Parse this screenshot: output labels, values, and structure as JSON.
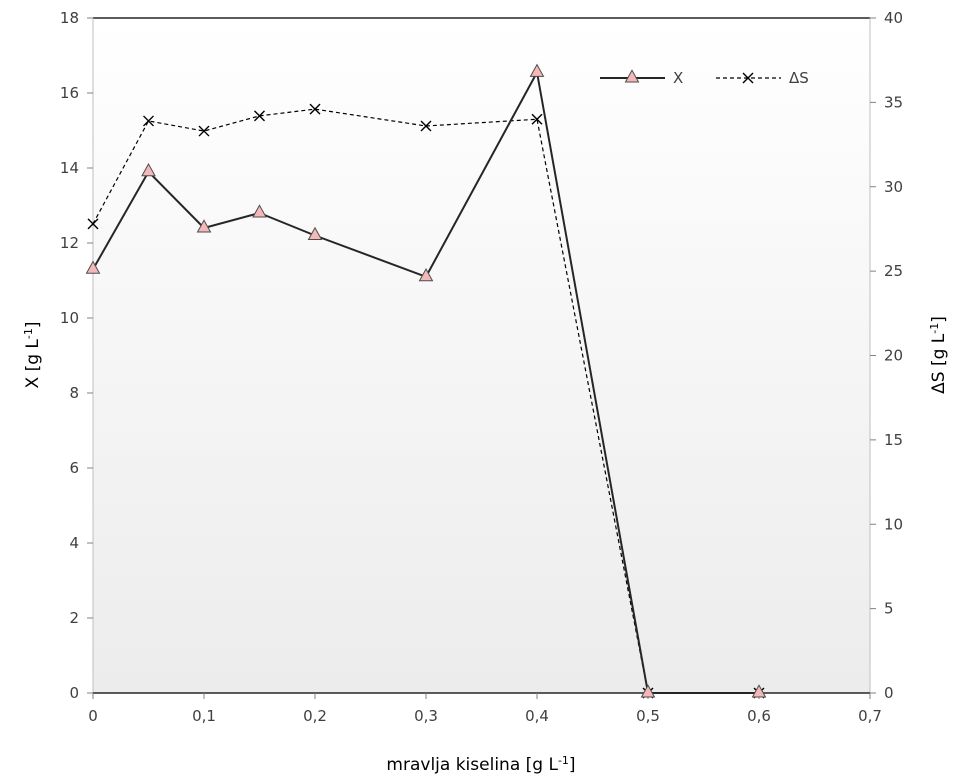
{
  "chart_data": {
    "type": "line",
    "title": "",
    "xlabel": "mravlja kiselina [g L",
    "xlabel_sup": "-1",
    "xlabel_end": "]",
    "ylabel_left": "X [g L",
    "ylabel_left_sup": "-1",
    "ylabel_left_end": "]",
    "ylabel_right": "ΔS [g L",
    "ylabel_right_sup": "-1",
    "ylabel_right_end": "]",
    "xlim": [
      0,
      0.7
    ],
    "ylim_left": [
      0,
      18
    ],
    "ylim_right": [
      0,
      40
    ],
    "x_ticks": [
      "0",
      "0,1",
      "0,2",
      "0,3",
      "0,4",
      "0,5",
      "0,6",
      "0,7"
    ],
    "y_left_ticks": [
      "0",
      "2",
      "4",
      "6",
      "8",
      "10",
      "12",
      "14",
      "16",
      "18"
    ],
    "y_right_ticks": [
      "0",
      "5",
      "10",
      "15",
      "20",
      "25",
      "30",
      "35",
      "40"
    ],
    "legend_position": "top-right",
    "grid": false,
    "series": [
      {
        "name": "X",
        "axis": "left",
        "style": "solid",
        "marker": "triangle",
        "color": "#262626",
        "marker_fill": "#f4b8b8",
        "x": [
          0,
          0.05,
          0.1,
          0.15,
          0.2,
          0.3,
          0.4,
          0.5,
          0.6
        ],
        "y": [
          11.3,
          13.9,
          12.4,
          12.8,
          12.2,
          11.1,
          16.55,
          0,
          0
        ]
      },
      {
        "name": "ΔS",
        "axis": "right",
        "style": "dashed",
        "marker": "x",
        "color": "#000000",
        "x": [
          0,
          0.05,
          0.1,
          0.15,
          0.2,
          0.3,
          0.4,
          0.5,
          0.6
        ],
        "y": [
          27.8,
          33.9,
          33.3,
          34.2,
          34.6,
          33.6,
          34.0,
          0,
          0
        ]
      }
    ]
  }
}
